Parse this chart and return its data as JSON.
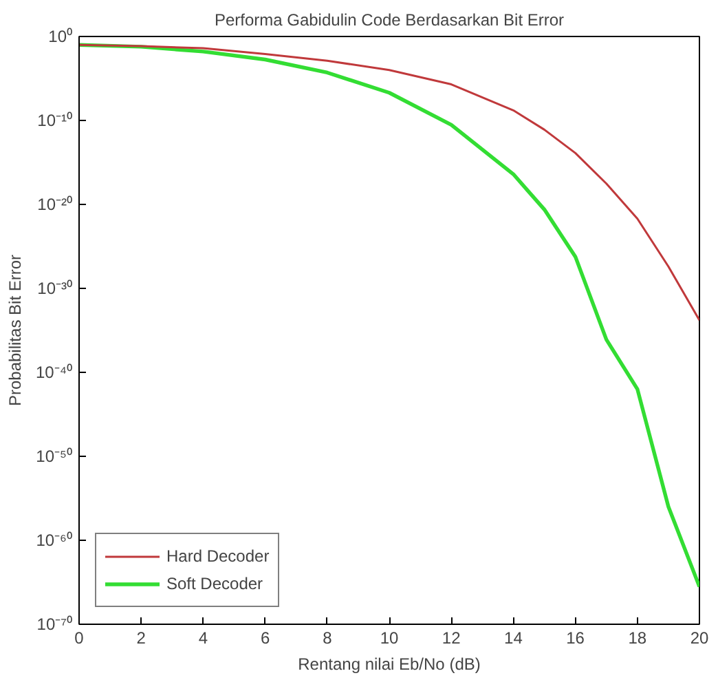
{
  "chart_data": {
    "type": "line",
    "title": "Performa Gabidulin Code Berdasarkan Bit Error",
    "xlabel": "Rentang nilai Eb/No (dB)",
    "ylabel": "Probabilitas Bit Error",
    "x": [
      0,
      2,
      4,
      6,
      8,
      10,
      12,
      14,
      15,
      16,
      17,
      18,
      19,
      20
    ],
    "series": [
      {
        "name": "Hard Decoder",
        "color": "#c0393b",
        "values": [
          0.1,
          0.07,
          0.04,
          0.008,
          0.0013,
          0.0001,
          2e-06,
          1.6e-09,
          8e-12,
          1.3e-14,
          3e-18,
          2e-22,
          4e-28,
          1.6e-34
        ]
      },
      {
        "name": "Soft Decoder",
        "color": "#33dd33",
        "values": [
          0.1,
          0.06,
          0.016,
          0.0018,
          5e-05,
          2e-07,
          3e-11,
          4e-17,
          2.5e-21,
          6e-27,
          8e-37,
          1e-42,
          1e-56,
          3e-66
        ]
      }
    ],
    "log": true,
    "xlim": [
      0,
      20
    ],
    "ylim": [
      1e-70,
      1
    ],
    "xticks": [
      0,
      2,
      4,
      6,
      8,
      10,
      12,
      14,
      16,
      18,
      20
    ],
    "yticks": [
      {
        "value": 1e-70,
        "label": "10⁻⁷⁰"
      },
      {
        "value": 1e-60,
        "label": "10⁻⁶⁰"
      },
      {
        "value": 1e-50,
        "label": "10⁻⁵⁰"
      },
      {
        "value": 1e-40,
        "label": "10⁻⁴⁰"
      },
      {
        "value": 1e-30,
        "label": "10⁻³⁰"
      },
      {
        "value": 1e-20,
        "label": "10⁻²⁰"
      },
      {
        "value": 1e-10,
        "label": "10⁻¹⁰"
      },
      {
        "value": 1,
        "label": "10⁰"
      }
    ],
    "grid": false,
    "legend": "bottom left",
    "marker": "none",
    "line_style": "solid"
  }
}
